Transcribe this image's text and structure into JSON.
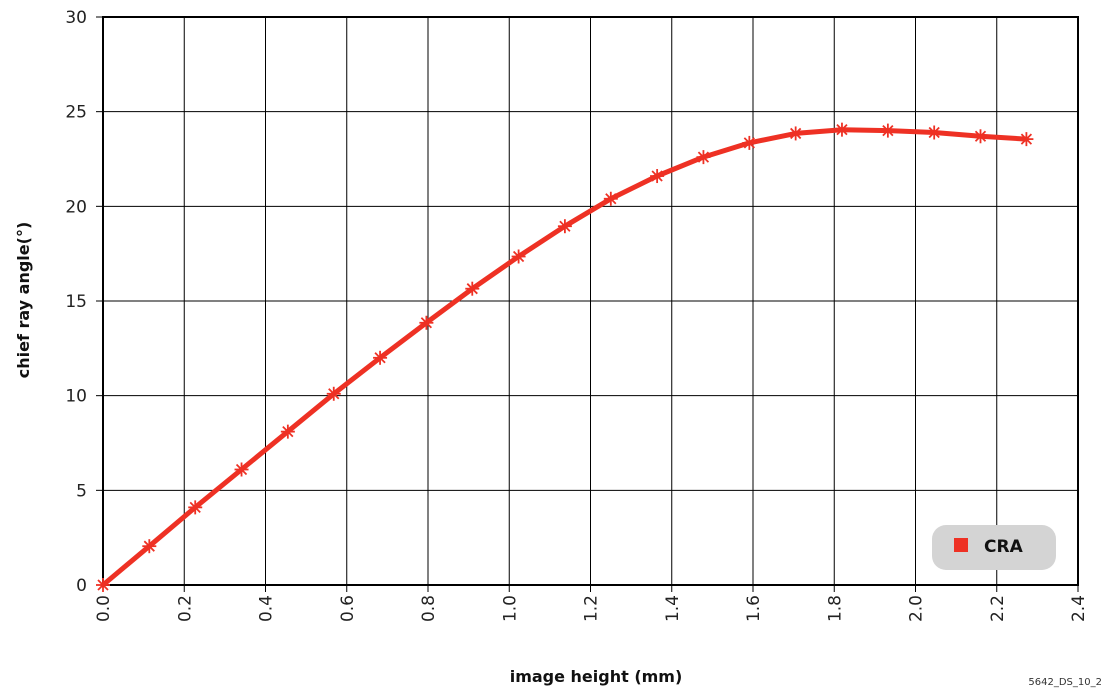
{
  "chart_data": {
    "type": "line",
    "title": "",
    "xlabel": "image height (mm)",
    "ylabel": "chief ray angle(°)",
    "xlim": [
      0,
      2.4
    ],
    "ylim": [
      0,
      30
    ],
    "x_ticks": [
      "0.0",
      "0.2",
      "0.4",
      "0.6",
      "0.8",
      "1.0",
      "1.2",
      "1.4",
      "1.6",
      "1.8",
      "2.0",
      "2.2",
      "2.4"
    ],
    "y_ticks": [
      "0",
      "5",
      "10",
      "15",
      "20",
      "25",
      "30"
    ],
    "grid": true,
    "legend_position": "bottom-right",
    "series": [
      {
        "name": "CRA",
        "color": "#ee3124",
        "marker": "asterisk",
        "x": [
          0.0,
          0.114,
          0.227,
          0.341,
          0.455,
          0.568,
          0.682,
          0.796,
          0.909,
          1.023,
          1.137,
          1.25,
          1.364,
          1.478,
          1.591,
          1.705,
          1.819,
          1.932,
          2.046,
          2.16,
          2.273
        ],
        "y": [
          0.0,
          2.05,
          4.1,
          6.1,
          8.1,
          10.1,
          12.0,
          13.85,
          15.65,
          17.35,
          18.95,
          20.4,
          21.6,
          22.6,
          23.35,
          23.85,
          24.05,
          24.0,
          23.9,
          23.7,
          23.55
        ]
      }
    ]
  },
  "footnote": "5642_DS_10_2"
}
